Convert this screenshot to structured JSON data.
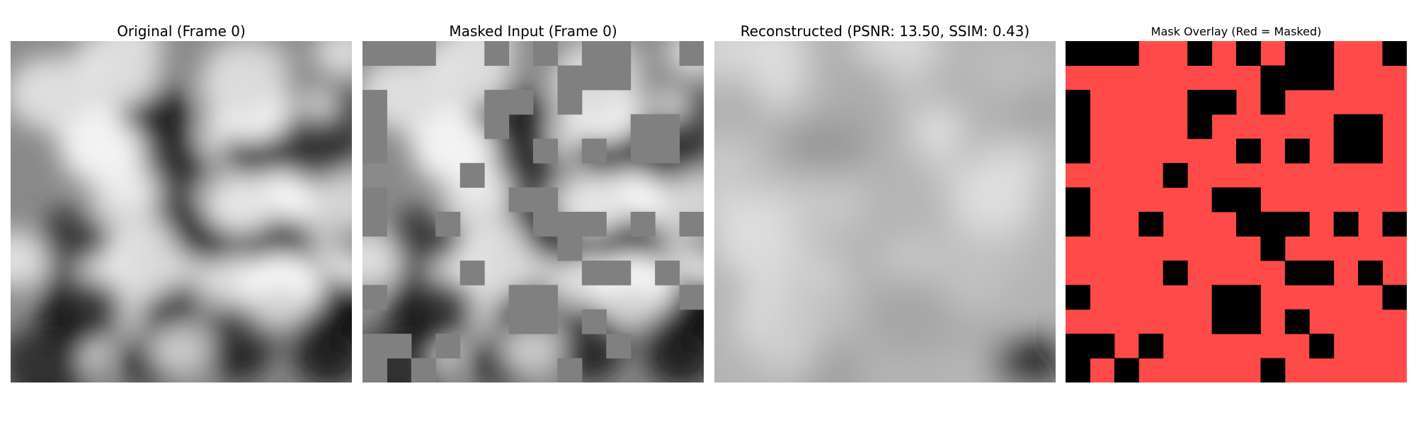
{
  "panels": [
    {
      "title": "Original (Frame 0)",
      "image": "grayscale-noise-texture"
    },
    {
      "title": "Masked Input (Frame 0)",
      "image": "masked-grayscale-noise-texture",
      "mask_fill": "#808080"
    },
    {
      "title": "Reconstructed (PSNR: 13.50, SSIM: 0.43)",
      "image": "blurry-reconstruction"
    },
    {
      "title": "Mask Overlay (Red = Masked)",
      "image": "mask-overlay",
      "mask_color": "#ff4a4a",
      "unmasked_color": "#000000"
    }
  ]
}
